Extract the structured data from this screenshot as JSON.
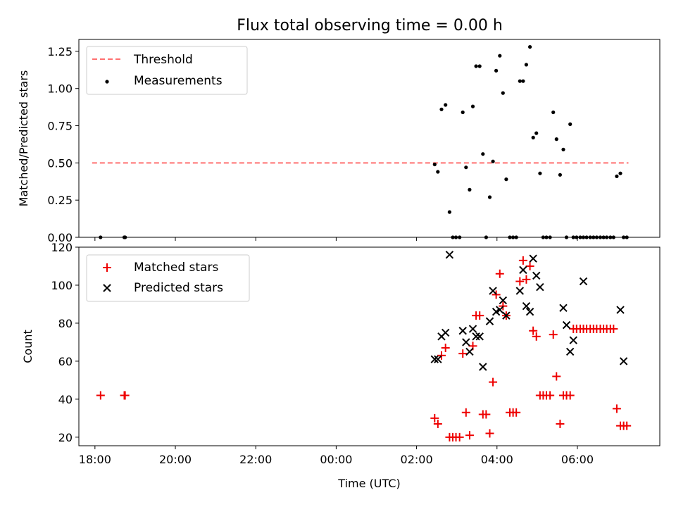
{
  "colors": {
    "threshold": "#ff7070",
    "measurements": "#000000",
    "matched": "#ee0000",
    "predicted": "#000000"
  },
  "chart_data": [
    {
      "type": "scatter",
      "title": "Flux total observing time = 0.00 h",
      "xlabel": "",
      "ylabel": "Matched/Predicted stars",
      "ylim": [
        0,
        1.33
      ],
      "yticks": [
        0,
        0.25,
        0.5,
        0.75,
        1.0,
        1.25
      ],
      "ytick_labels": [
        "0.00",
        "0.25",
        "0.50",
        "0.75",
        "1.00",
        "1.25"
      ],
      "grid": false,
      "legend": {
        "position": "top-left",
        "entries": [
          "Threshold",
          "Measurements"
        ]
      },
      "threshold": {
        "name": "Threshold",
        "value": 0.5,
        "x_range": [
          17.93,
          31.27
        ],
        "style": "dashed"
      },
      "series": [
        {
          "name": "Measurements",
          "marker": "dot",
          "x": [
            18.14,
            18.73,
            18.75,
            26.45,
            26.53,
            26.62,
            26.72,
            26.82,
            26.9,
            26.98,
            27.07,
            27.15,
            27.23,
            27.32,
            27.4,
            27.48,
            27.57,
            27.65,
            27.73,
            27.82,
            27.9,
            27.98,
            28.07,
            28.15,
            28.23,
            28.32,
            28.4,
            28.48,
            28.57,
            28.65,
            28.73,
            28.82,
            28.9,
            28.98,
            29.07,
            29.15,
            29.23,
            29.32,
            29.4,
            29.48,
            29.57,
            29.65,
            29.73,
            29.82,
            29.9,
            29.98,
            30.07,
            30.15,
            30.23,
            30.32,
            30.4,
            30.48,
            30.57,
            30.65,
            30.73,
            30.82,
            30.9,
            30.98,
            31.07,
            31.15,
            31.23
          ],
          "y": [
            0,
            0,
            0,
            0.49,
            0.44,
            0.86,
            0.89,
            0.17,
            0,
            0,
            0,
            0.84,
            0.47,
            0.32,
            0.88,
            1.15,
            1.15,
            0.56,
            0,
            0.27,
            0.51,
            1.12,
            1.22,
            0.97,
            0.39,
            0,
            0,
            0,
            1.05,
            1.05,
            1.16,
            1.28,
            0.67,
            0.7,
            0.43,
            0,
            0,
            0,
            0.84,
            0.66,
            0.42,
            0.59,
            0,
            0.76,
            0,
            0,
            0,
            0,
            0,
            0,
            0,
            0,
            0,
            0,
            0,
            0,
            0,
            0.41,
            0.43,
            0,
            0
          ]
        }
      ]
    },
    {
      "type": "scatter",
      "title": "",
      "xlabel": "Time (UTC)",
      "ylabel": "Count",
      "xlim": [
        17.6,
        32.05
      ],
      "ylim": [
        15.5,
        120
      ],
      "xticks": [
        18,
        20,
        22,
        24,
        26,
        28,
        30
      ],
      "xtick_labels": [
        "18:00",
        "20:00",
        "22:00",
        "00:00",
        "02:00",
        "04:00",
        "06:00"
      ],
      "yticks": [
        20,
        40,
        60,
        80,
        100,
        120
      ],
      "ytick_labels": [
        "20",
        "40",
        "60",
        "80",
        "100",
        "120"
      ],
      "grid": false,
      "legend": {
        "position": "top-left",
        "entries": [
          "Matched stars",
          "Predicted stars"
        ]
      },
      "series": [
        {
          "name": "Matched stars",
          "marker": "plus",
          "x": [
            18.14,
            18.73,
            18.75,
            26.45,
            26.53,
            26.62,
            26.72,
            26.82,
            26.9,
            26.98,
            27.07,
            27.15,
            27.23,
            27.32,
            27.4,
            27.48,
            27.57,
            27.65,
            27.73,
            27.82,
            27.9,
            27.98,
            28.07,
            28.15,
            28.23,
            28.32,
            28.4,
            28.48,
            28.57,
            28.65,
            28.73,
            28.82,
            28.9,
            28.98,
            29.07,
            29.15,
            29.23,
            29.32,
            29.4,
            29.48,
            29.57,
            29.65,
            29.73,
            29.82,
            29.9,
            29.98,
            30.07,
            30.15,
            30.23,
            30.32,
            30.4,
            30.48,
            30.57,
            30.65,
            30.73,
            30.82,
            30.9,
            30.98,
            31.07,
            31.15,
            31.23
          ],
          "y": [
            42,
            42,
            42,
            30,
            27,
            63,
            67,
            20,
            20,
            20,
            20,
            64,
            33,
            21,
            68,
            84,
            84,
            32,
            32,
            22,
            49,
            95,
            106,
            89,
            84,
            33,
            33,
            33,
            102,
            113,
            103,
            110,
            76,
            73,
            42,
            42,
            42,
            42,
            74,
            52,
            27,
            42,
            42,
            42,
            77,
            77,
            77,
            77,
            77,
            77,
            77,
            77,
            77,
            77,
            77,
            77,
            77,
            35,
            26,
            26,
            26
          ]
        },
        {
          "name": "Predicted stars",
          "marker": "x",
          "x": [
            26.45,
            26.53,
            26.62,
            26.72,
            26.82,
            27.15,
            27.23,
            27.32,
            27.4,
            27.48,
            27.57,
            27.65,
            27.82,
            27.9,
            27.98,
            28.07,
            28.15,
            28.23,
            28.57,
            28.65,
            28.73,
            28.82,
            28.9,
            28.98,
            29.07,
            29.65,
            29.73,
            29.82,
            29.9,
            30.15,
            31.07,
            31.15
          ],
          "y": [
            61,
            61,
            73,
            75,
            116,
            76,
            70,
            65,
            77,
            73,
            73,
            57,
            81,
            97,
            86,
            87,
            92,
            84,
            97,
            108,
            89,
            86,
            114,
            105,
            99,
            88,
            79,
            65,
            71,
            102,
            87,
            60
          ]
        }
      ]
    }
  ]
}
